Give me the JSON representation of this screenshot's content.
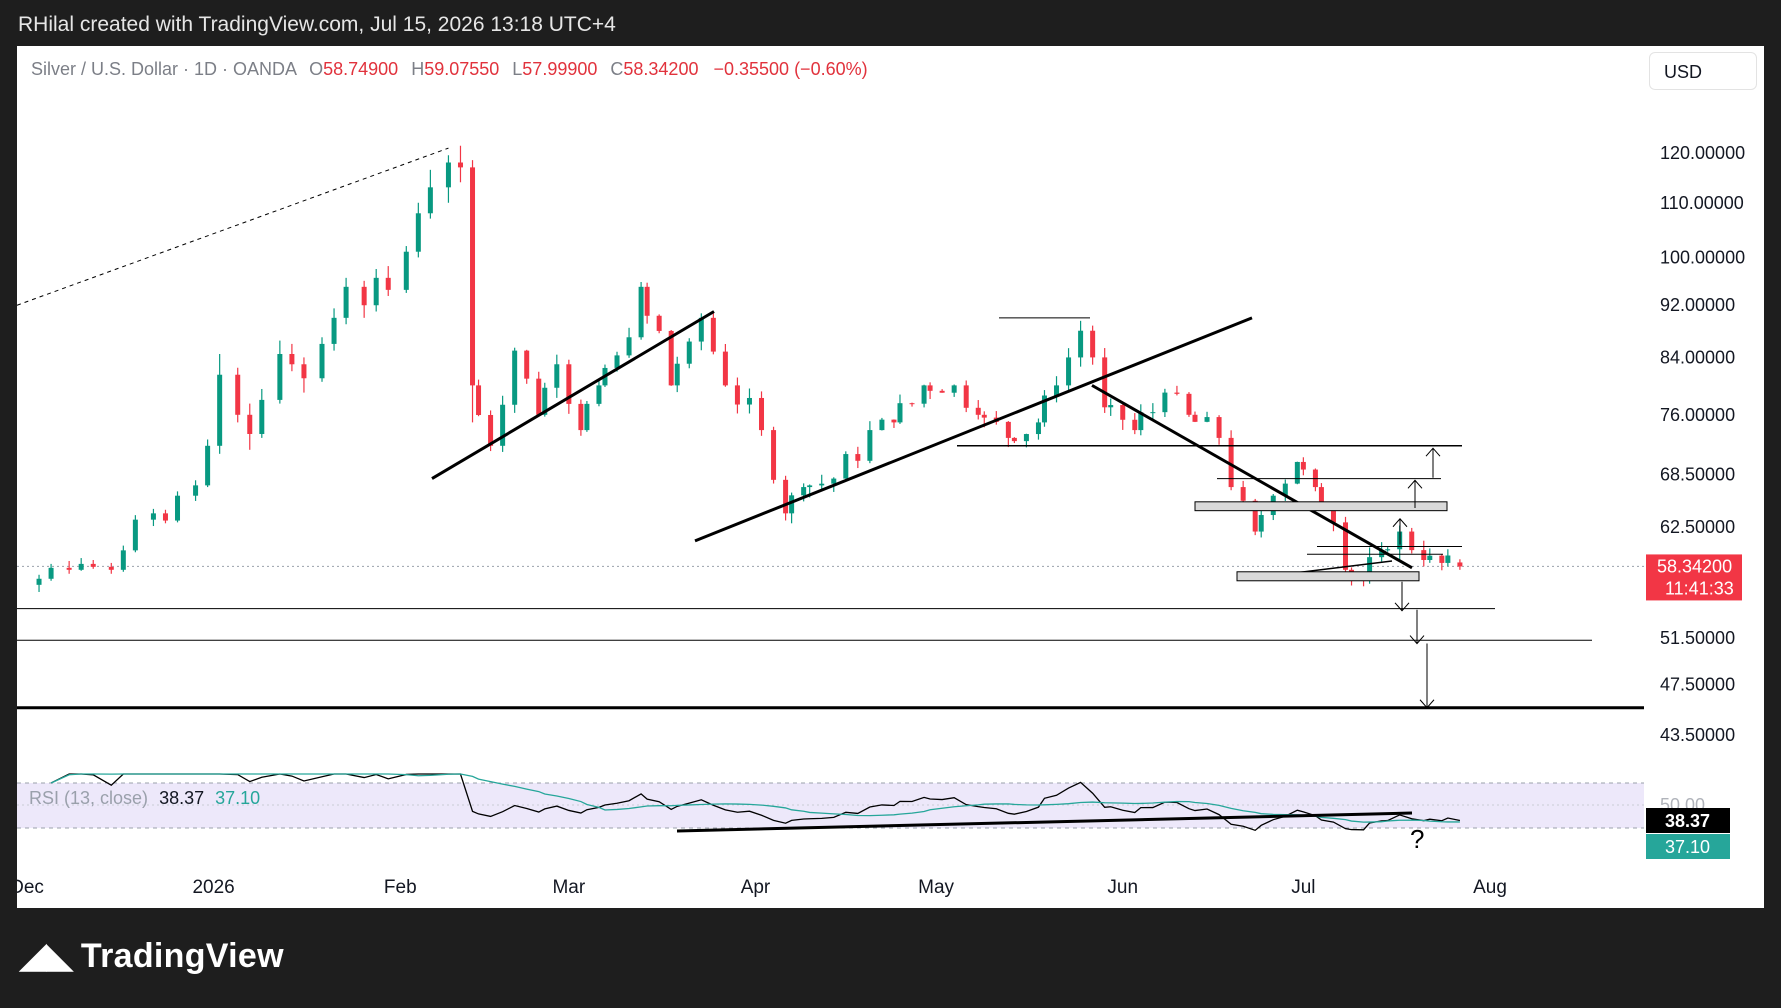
{
  "header": {
    "attribution": "RHilal created with TradingView.com, Jul 15, 2026 13:18 UTC+4"
  },
  "legend": {
    "symbol": "Silver / U.S. Dollar · 1D · OANDA",
    "o_label": "O",
    "o": "58.74900",
    "h_label": "H",
    "h": "59.07550",
    "l_label": "L",
    "l": "57.99900",
    "c_label": "C",
    "c": "58.34200",
    "change": "−0.35500 (−0.60%)"
  },
  "currency_button": "USD",
  "price_tag": {
    "price": "58.34200",
    "countdown": "11:41:33"
  },
  "rsi": {
    "legend_title": "RSI (13, close)",
    "value": "38.37",
    "ma_value": "37.10",
    "tag_value": "38.37",
    "tag_ma": "37.10",
    "axis_label": "50.00"
  },
  "annotation": "?",
  "footer": {
    "brand": "TradingView"
  },
  "colors": {
    "up": "#089981",
    "down": "#f23645",
    "rsi_line": "#000000",
    "rsi_ma": "#26a69a",
    "rsi_band": "#ede8fa",
    "price_tag": "#f23645"
  },
  "chart_data": {
    "type": "candlestick",
    "title": "Silver / U.S. Dollar · 1D · OANDA",
    "scale": "log",
    "ylim": [
      42,
      124
    ],
    "y_ticks": [
      "120.00000",
      "110.00000",
      "100.00000",
      "92.00000",
      "84.00000",
      "76.00000",
      "68.50000",
      "62.50000",
      "51.50000",
      "47.50000",
      "43.50000"
    ],
    "x_ticks": [
      "Dec",
      "2026",
      "Feb",
      "Mar",
      "Apr",
      "May",
      "Jun",
      "Jul",
      "Aug"
    ],
    "x_tick_dates": [
      "2025-12-01",
      "2026-01-01",
      "2026-02-01",
      "2026-03-01",
      "2026-04-01",
      "2026-05-01",
      "2026-06-01",
      "2026-07-01",
      "2026-08-01"
    ],
    "xlim": [
      "2025-12-01",
      "2026-08-03"
    ],
    "candles": [
      {
        "date": "2025-12-03",
        "o": 56.5,
        "h": 57.5,
        "l": 55.8,
        "c": 57.1
      },
      {
        "date": "2025-12-05",
        "o": 57.1,
        "h": 58.6,
        "l": 56.9,
        "c": 58.2
      },
      {
        "date": "2025-12-08",
        "o": 58.2,
        "h": 58.9,
        "l": 57.6,
        "c": 58.0
      },
      {
        "date": "2025-12-10",
        "o": 58.0,
        "h": 59.2,
        "l": 57.9,
        "c": 58.6
      },
      {
        "date": "2025-12-12",
        "o": 58.6,
        "h": 59.0,
        "l": 58.1,
        "c": 58.3
      },
      {
        "date": "2025-12-15",
        "o": 58.3,
        "h": 58.7,
        "l": 57.6,
        "c": 58.0
      },
      {
        "date": "2025-12-17",
        "o": 58.0,
        "h": 60.5,
        "l": 57.8,
        "c": 60.0
      },
      {
        "date": "2025-12-19",
        "o": 60.0,
        "h": 63.8,
        "l": 59.8,
        "c": 63.3
      },
      {
        "date": "2025-12-22",
        "o": 63.3,
        "h": 64.5,
        "l": 62.6,
        "c": 64.0
      },
      {
        "date": "2025-12-24",
        "o": 64.0,
        "h": 64.4,
        "l": 62.9,
        "c": 63.2
      },
      {
        "date": "2025-12-26",
        "o": 63.2,
        "h": 66.5,
        "l": 63.0,
        "c": 66.0
      },
      {
        "date": "2025-12-29",
        "o": 66.0,
        "h": 67.8,
        "l": 65.4,
        "c": 67.2
      },
      {
        "date": "2025-12-31",
        "o": 67.2,
        "h": 72.8,
        "l": 67.0,
        "c": 72.0
      },
      {
        "date": "2026-01-02",
        "o": 72.0,
        "h": 84.5,
        "l": 71.0,
        "c": 81.5
      },
      {
        "date": "2026-01-05",
        "o": 81.5,
        "h": 82.5,
        "l": 75.0,
        "c": 76.0
      },
      {
        "date": "2026-01-07",
        "o": 76.0,
        "h": 77.5,
        "l": 71.5,
        "c": 73.5
      },
      {
        "date": "2026-01-09",
        "o": 73.5,
        "h": 79.5,
        "l": 73.0,
        "c": 78.0
      },
      {
        "date": "2026-01-12",
        "o": 78.0,
        "h": 86.5,
        "l": 77.5,
        "c": 84.5
      },
      {
        "date": "2026-01-14",
        "o": 84.5,
        "h": 86.0,
        "l": 82.0,
        "c": 83.0
      },
      {
        "date": "2026-01-16",
        "o": 83.0,
        "h": 84.0,
        "l": 79.0,
        "c": 81.0
      },
      {
        "date": "2026-01-19",
        "o": 81.0,
        "h": 87.0,
        "l": 80.5,
        "c": 86.0
      },
      {
        "date": "2026-01-21",
        "o": 86.0,
        "h": 91.5,
        "l": 85.0,
        "c": 90.0
      },
      {
        "date": "2026-01-23",
        "o": 90.0,
        "h": 96.5,
        "l": 89.0,
        "c": 95.0
      },
      {
        "date": "2026-01-26",
        "o": 95.0,
        "h": 96.0,
        "l": 90.0,
        "c": 92.0
      },
      {
        "date": "2026-01-28",
        "o": 92.0,
        "h": 98.0,
        "l": 91.0,
        "c": 96.5
      },
      {
        "date": "2026-01-30",
        "o": 96.5,
        "h": 98.5,
        "l": 93.5,
        "c": 94.5
      },
      {
        "date": "2026-02-02",
        "o": 94.5,
        "h": 102.0,
        "l": 94.0,
        "c": 101.0
      },
      {
        "date": "2026-02-04",
        "o": 101.0,
        "h": 110.0,
        "l": 100.0,
        "c": 108.0
      },
      {
        "date": "2026-02-06",
        "o": 108.0,
        "h": 116.5,
        "l": 107.0,
        "c": 113.0
      },
      {
        "date": "2026-02-09",
        "o": 113.0,
        "h": 119.5,
        "l": 110.0,
        "c": 118.0
      },
      {
        "date": "2026-02-11",
        "o": 118.0,
        "h": 121.5,
        "l": 114.0,
        "c": 117.0
      },
      {
        "date": "2026-02-13",
        "o": 117.0,
        "h": 118.5,
        "l": 75.0,
        "c": 80.0
      }
    ],
    "note": "Remaining daily candles Feb–Jul follow the drawn sequence: rebound to ~96, decline to ~64, rally to ~88, decline to ~55, consolidation near 57.5–62 with last close 58.342"
  }
}
